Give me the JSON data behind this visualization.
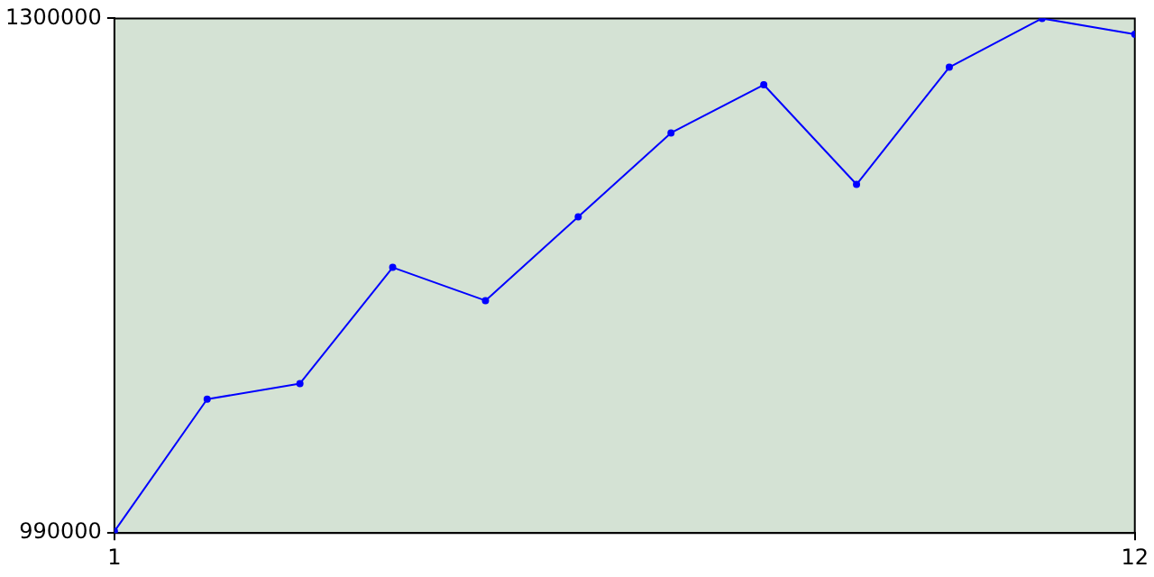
{
  "chart_data": {
    "type": "line",
    "x": [
      1,
      2,
      3,
      4,
      5,
      6,
      7,
      8,
      9,
      10,
      11,
      12
    ],
    "series": [
      {
        "color": "#0000ff",
        "values": [
          991000,
          1070600,
          1080000,
          1150000,
          1130000,
          1180500,
          1231000,
          1260000,
          1200000,
          1270600,
          1300000,
          1290500
        ]
      }
    ],
    "xlim": [
      1,
      12
    ],
    "xticks": [
      1,
      12
    ],
    "ylim": [
      990000,
      1300000
    ],
    "yticks": [
      990000,
      1300000
    ],
    "grid": false,
    "legend": false,
    "marker": "circle",
    "line_style": "solid"
  }
}
